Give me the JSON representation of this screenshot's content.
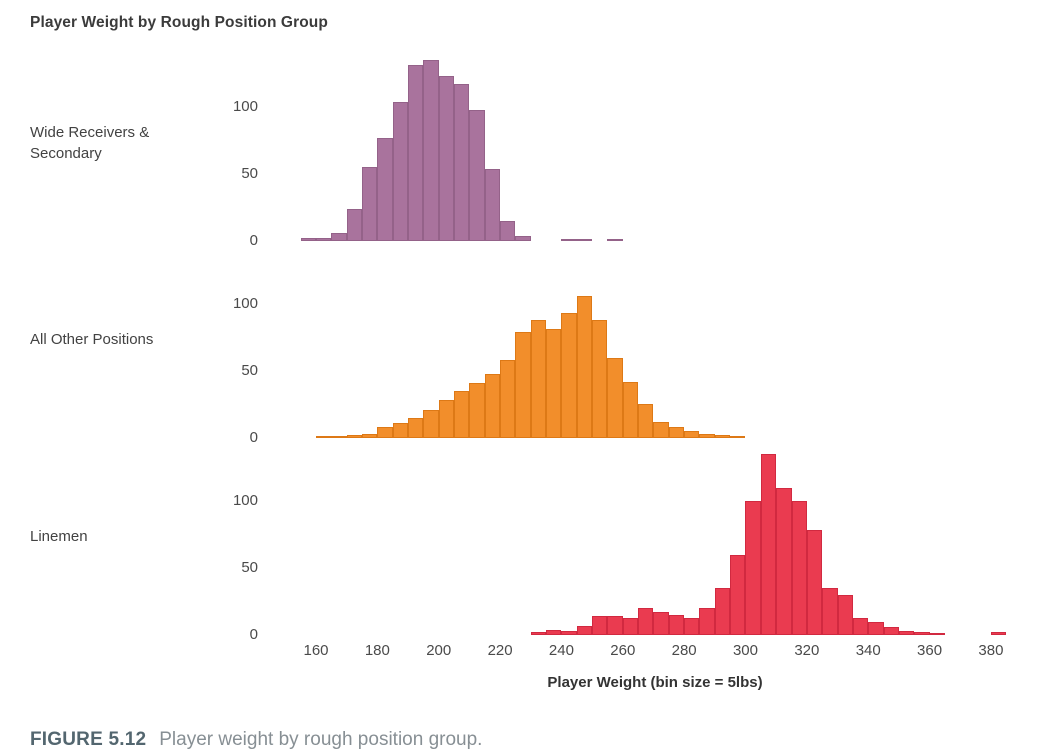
{
  "chart_data": {
    "type": "bar",
    "subtype": "faceted-histogram",
    "title": "Player Weight by Rough Position Group",
    "xlabel": "Player Weight (bin size = 5lbs)",
    "bin_size_lbs": 5,
    "x_domain": [
      145,
      396
    ],
    "x_ticks": [
      160,
      180,
      200,
      220,
      240,
      260,
      280,
      300,
      320,
      340,
      360,
      380
    ],
    "y_ticks": [
      0,
      50,
      100
    ],
    "y_max": 140,
    "grid": "off",
    "legend": "none",
    "panels": [
      {
        "label": "Wide Receivers & Secondary",
        "color": "#a9739d",
        "edge_color": "#946289",
        "bins": [
          [
            155,
            2
          ],
          [
            160,
            2
          ],
          [
            165,
            6
          ],
          [
            170,
            24
          ],
          [
            175,
            55
          ],
          [
            180,
            77
          ],
          [
            185,
            104
          ],
          [
            190,
            131
          ],
          [
            195,
            135
          ],
          [
            200,
            123
          ],
          [
            205,
            117
          ],
          [
            210,
            98
          ],
          [
            215,
            54
          ],
          [
            220,
            15
          ],
          [
            225,
            4
          ],
          [
            240,
            1
          ],
          [
            245,
            1
          ],
          [
            255,
            1
          ]
        ]
      },
      {
        "label": "All Other Positions",
        "color": "#f28e2b",
        "edge_color": "#dd7916",
        "bins": [
          [
            160,
            1
          ],
          [
            165,
            1
          ],
          [
            170,
            2
          ],
          [
            175,
            3
          ],
          [
            180,
            8
          ],
          [
            185,
            11
          ],
          [
            190,
            15
          ],
          [
            195,
            21
          ],
          [
            200,
            28
          ],
          [
            205,
            35
          ],
          [
            210,
            41
          ],
          [
            215,
            48
          ],
          [
            220,
            58
          ],
          [
            225,
            79
          ],
          [
            230,
            88
          ],
          [
            235,
            81
          ],
          [
            240,
            93
          ],
          [
            245,
            106
          ],
          [
            250,
            88
          ],
          [
            255,
            60
          ],
          [
            260,
            42
          ],
          [
            265,
            25
          ],
          [
            270,
            12
          ],
          [
            275,
            8
          ],
          [
            280,
            5
          ],
          [
            285,
            3
          ],
          [
            290,
            2
          ],
          [
            295,
            1
          ]
        ]
      },
      {
        "label": "Linemen",
        "color": "#ea3b50",
        "edge_color": "#d12940",
        "bins": [
          [
            230,
            2
          ],
          [
            235,
            4
          ],
          [
            240,
            3
          ],
          [
            245,
            7
          ],
          [
            250,
            14
          ],
          [
            255,
            14
          ],
          [
            260,
            13
          ],
          [
            265,
            20
          ],
          [
            270,
            17
          ],
          [
            275,
            15
          ],
          [
            280,
            13
          ],
          [
            285,
            20
          ],
          [
            290,
            35
          ],
          [
            295,
            60
          ],
          [
            300,
            100
          ],
          [
            305,
            135
          ],
          [
            310,
            110
          ],
          [
            315,
            100
          ],
          [
            320,
            78
          ],
          [
            325,
            35
          ],
          [
            330,
            30
          ],
          [
            335,
            13
          ],
          [
            340,
            10
          ],
          [
            345,
            6
          ],
          [
            350,
            3
          ],
          [
            355,
            2
          ],
          [
            360,
            1
          ],
          [
            380,
            2
          ]
        ]
      }
    ]
  },
  "caption": {
    "label": "FIGURE 5.12",
    "text": "Player weight by rough position group."
  }
}
